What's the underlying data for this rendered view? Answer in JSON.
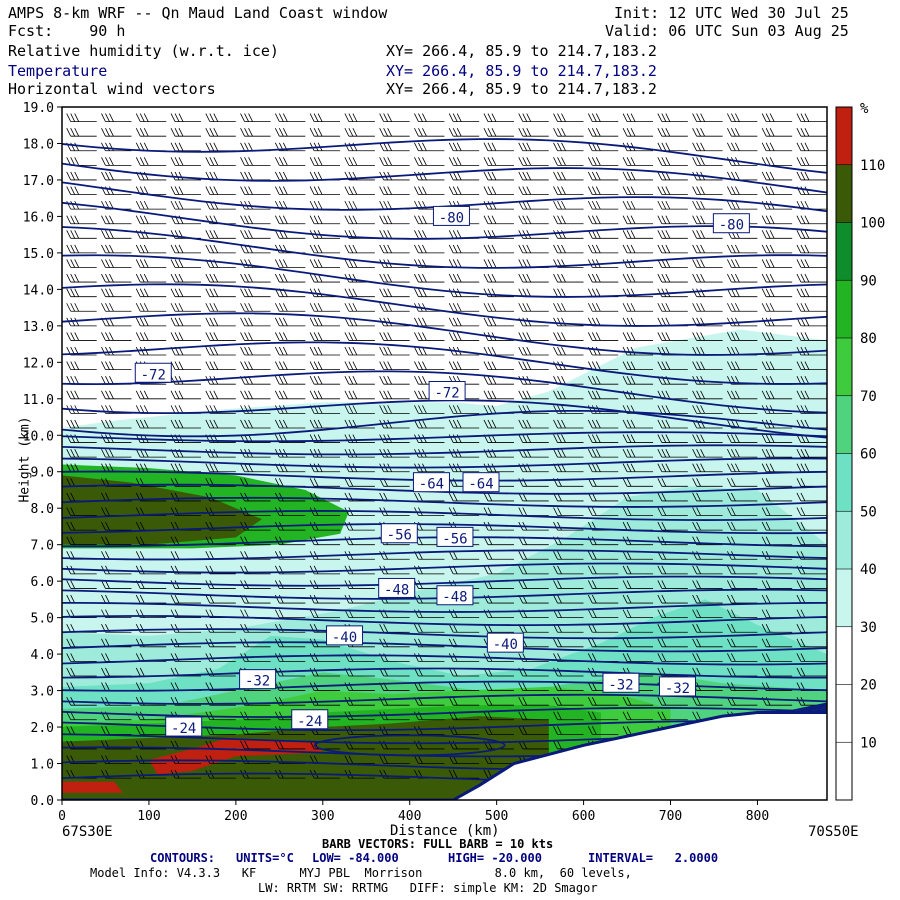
{
  "header": {
    "title": "AMPS 8-km WRF -- Qn Maud Land Coast window",
    "init": "Init: 12 UTC Wed 30 Jul 25",
    "fcst": "Fcst:    90 h",
    "valid": "Valid: 06 UTC Sun 03 Aug 25",
    "fields": [
      {
        "name": "Relative humidity (w.r.t. ice)",
        "xy": "XY= 266.4, 85.9 to 214.7,183.2"
      },
      {
        "name": "Temperature",
        "xy": "XY= 266.4, 85.9 to 214.7,183.2"
      },
      {
        "name": "Horizontal wind vectors",
        "xy": "XY= 266.4, 85.9 to 214.7,183.2"
      }
    ]
  },
  "chart_data": {
    "type": "heatmap",
    "description_fields": [
      "Relative humidity (w.r.t. ice)",
      "Temperature",
      "Horizontal wind vectors"
    ],
    "xlabel": "Distance (km)",
    "ylabel": "Height (km)",
    "xlim": [
      0,
      880
    ],
    "ylim": [
      0,
      19
    ],
    "x_ticks": [
      "0",
      "100",
      "200",
      "300",
      "400",
      "500",
      "600",
      "700",
      "800"
    ],
    "y_ticks": [
      "0.0",
      "1.0",
      "2.0",
      "3.0",
      "4.0",
      "5.0",
      "6.0",
      "7.0",
      "8.0",
      "9.0",
      "10.0",
      "11.0",
      "12.0",
      "13.0",
      "14.0",
      "15.0",
      "16.0",
      "17.0",
      "18.0",
      "19.0"
    ],
    "left_endpoint": "67S30E",
    "right_endpoint": "70S50E",
    "colorbar": {
      "unit": "%",
      "levels": [
        10,
        20,
        30,
        40,
        50,
        60,
        70,
        80,
        90,
        100,
        110
      ],
      "labels": [
        "10",
        "20",
        "30",
        "40",
        "50",
        "60",
        "70",
        "80",
        "90",
        "100",
        "110"
      ],
      "colors": [
        "#ffffff",
        "#ffffff",
        "#ffffff",
        "#c8f5ee",
        "#9eebdc",
        "#6ee0c4",
        "#4fd37f",
        "#3ecc3e",
        "#22b422",
        "#0f8c2b",
        "#3a5a07",
        "#c02010"
      ]
    },
    "temperature_contours": {
      "units": "°C",
      "low": -84.0,
      "high": -20.0,
      "interval": 2.0,
      "labels": [
        {
          "text": "-80",
          "x": 448,
          "y": 16.0
        },
        {
          "text": "-80",
          "x": 770,
          "y": 15.8
        },
        {
          "text": "-72",
          "x": 105,
          "y": 11.7
        },
        {
          "text": "-72",
          "x": 443,
          "y": 11.2
        },
        {
          "text": "-64",
          "x": 425,
          "y": 8.7
        },
        {
          "text": "-64",
          "x": 482,
          "y": 8.7
        },
        {
          "text": "-56",
          "x": 388,
          "y": 7.3
        },
        {
          "text": "-56",
          "x": 452,
          "y": 7.2
        },
        {
          "text": "-48",
          "x": 385,
          "y": 5.8
        },
        {
          "text": "-48",
          "x": 452,
          "y": 5.6
        },
        {
          "text": "-40",
          "x": 325,
          "y": 4.5
        },
        {
          "text": "-40",
          "x": 510,
          "y": 4.3
        },
        {
          "text": "-32",
          "x": 225,
          "y": 3.3
        },
        {
          "text": "-32",
          "x": 643,
          "y": 3.2
        },
        {
          "text": "-32",
          "x": 708,
          "y": 3.1
        },
        {
          "text": "-24",
          "x": 285,
          "y": 2.2
        },
        {
          "text": "-24",
          "x": 140,
          "y": 2.0
        }
      ]
    },
    "terrain_profile": [
      [
        0,
        0
      ],
      [
        450,
        0
      ],
      [
        480,
        0.4
      ],
      [
        520,
        1.0
      ],
      [
        600,
        1.5
      ],
      [
        680,
        1.9
      ],
      [
        720,
        2.1
      ],
      [
        760,
        2.3
      ],
      [
        800,
        2.4
      ],
      [
        880,
        2.4
      ]
    ],
    "barb_legend": "BARB VECTORS: FULL BARB = 10 kts"
  },
  "footer": {
    "contours_label": "CONTOURS:",
    "units": "UNITS=°C",
    "low": "LOW= -84.000",
    "high": "HIGH= -20.000",
    "interval": "INTERVAL=   2.0000",
    "model_info": "Model Info: V4.3.3   KF      MYJ PBL  Morrison          8.0 km,  60 levels,",
    "model_info2": "LW: RRTM SW: RRTMG   DIFF: simple KM: 2D Smagor"
  },
  "colors": {
    "contour": "#0a1a7a",
    "axis": "#000000",
    "terrain": "#ffffff"
  }
}
